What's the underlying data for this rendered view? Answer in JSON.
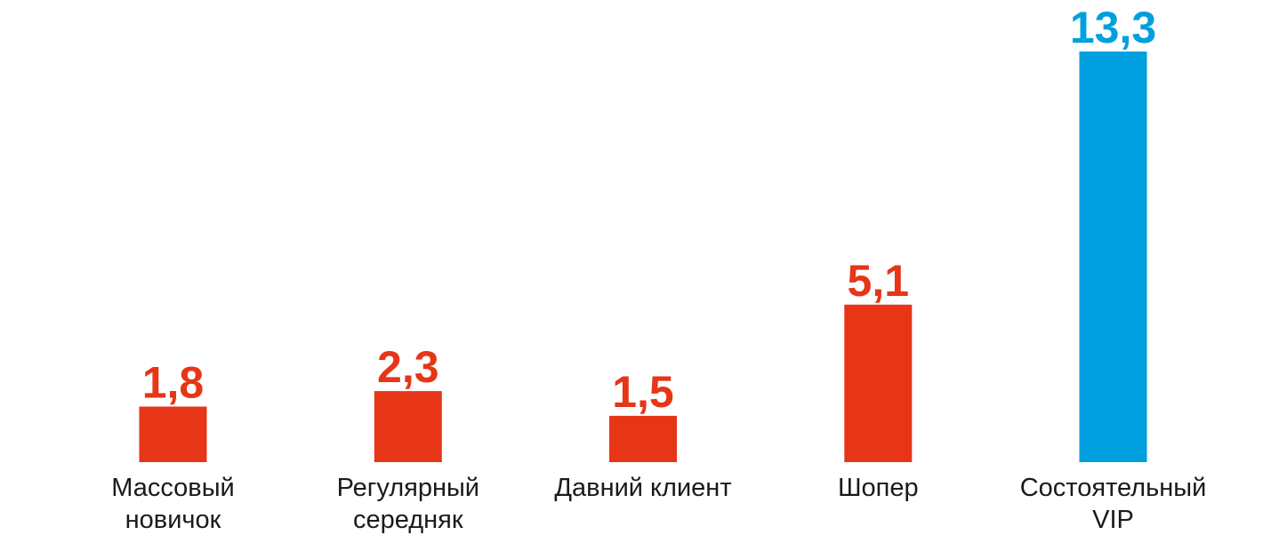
{
  "chart_data": {
    "type": "bar",
    "categories": [
      [
        "Массовый",
        "новичок"
      ],
      [
        "Регулярный",
        "середняк"
      ],
      [
        "Давний клиент"
      ],
      [
        "Шопер"
      ],
      [
        "Состоятельный",
        "VIP"
      ]
    ],
    "values": [
      1.8,
      2.3,
      1.5,
      5.1,
      13.3
    ],
    "value_labels": [
      "1,8",
      "2,3",
      "1,5",
      "5,1",
      "13,3"
    ],
    "colors": [
      "#e63517",
      "#e63517",
      "#e63517",
      "#e63517",
      "#009fdf"
    ],
    "ylim": [
      0,
      13.3
    ],
    "grid": false,
    "legend": "none"
  }
}
